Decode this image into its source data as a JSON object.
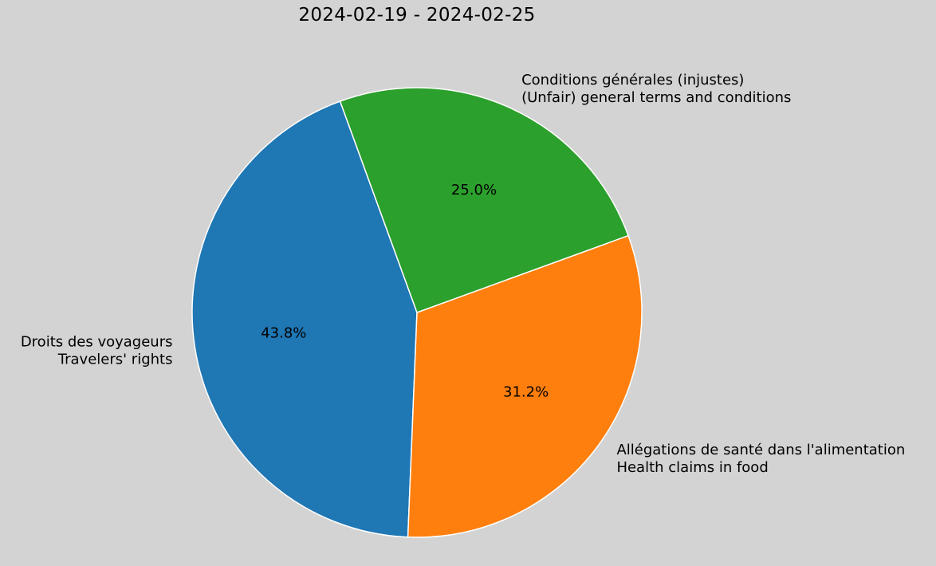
{
  "chart_data": {
    "type": "pie",
    "title": "2024-02-19 - 2024-02-25",
    "start_angle_deg": 110,
    "direction": "counterclockwise",
    "slices": [
      {
        "label_line1": "Droits des voyageurs",
        "label_line2": "Travelers' rights",
        "value": 43.8,
        "pct_text": "43.8%",
        "color": "#1f77b4"
      },
      {
        "label_line1": "Allégations de santé dans l'alimentation",
        "label_line2": "Health claims in food",
        "value": 31.2,
        "pct_text": "31.2%",
        "color": "#ff7f0e"
      },
      {
        "label_line1": "Conditions générales (injustes)",
        "label_line2": "(Unfair) general terms and conditions",
        "value": 25.0,
        "pct_text": "25.0%",
        "color": "#2ca02c"
      }
    ],
    "edge_color": "#ffffff",
    "background": "#d3d3d3"
  }
}
